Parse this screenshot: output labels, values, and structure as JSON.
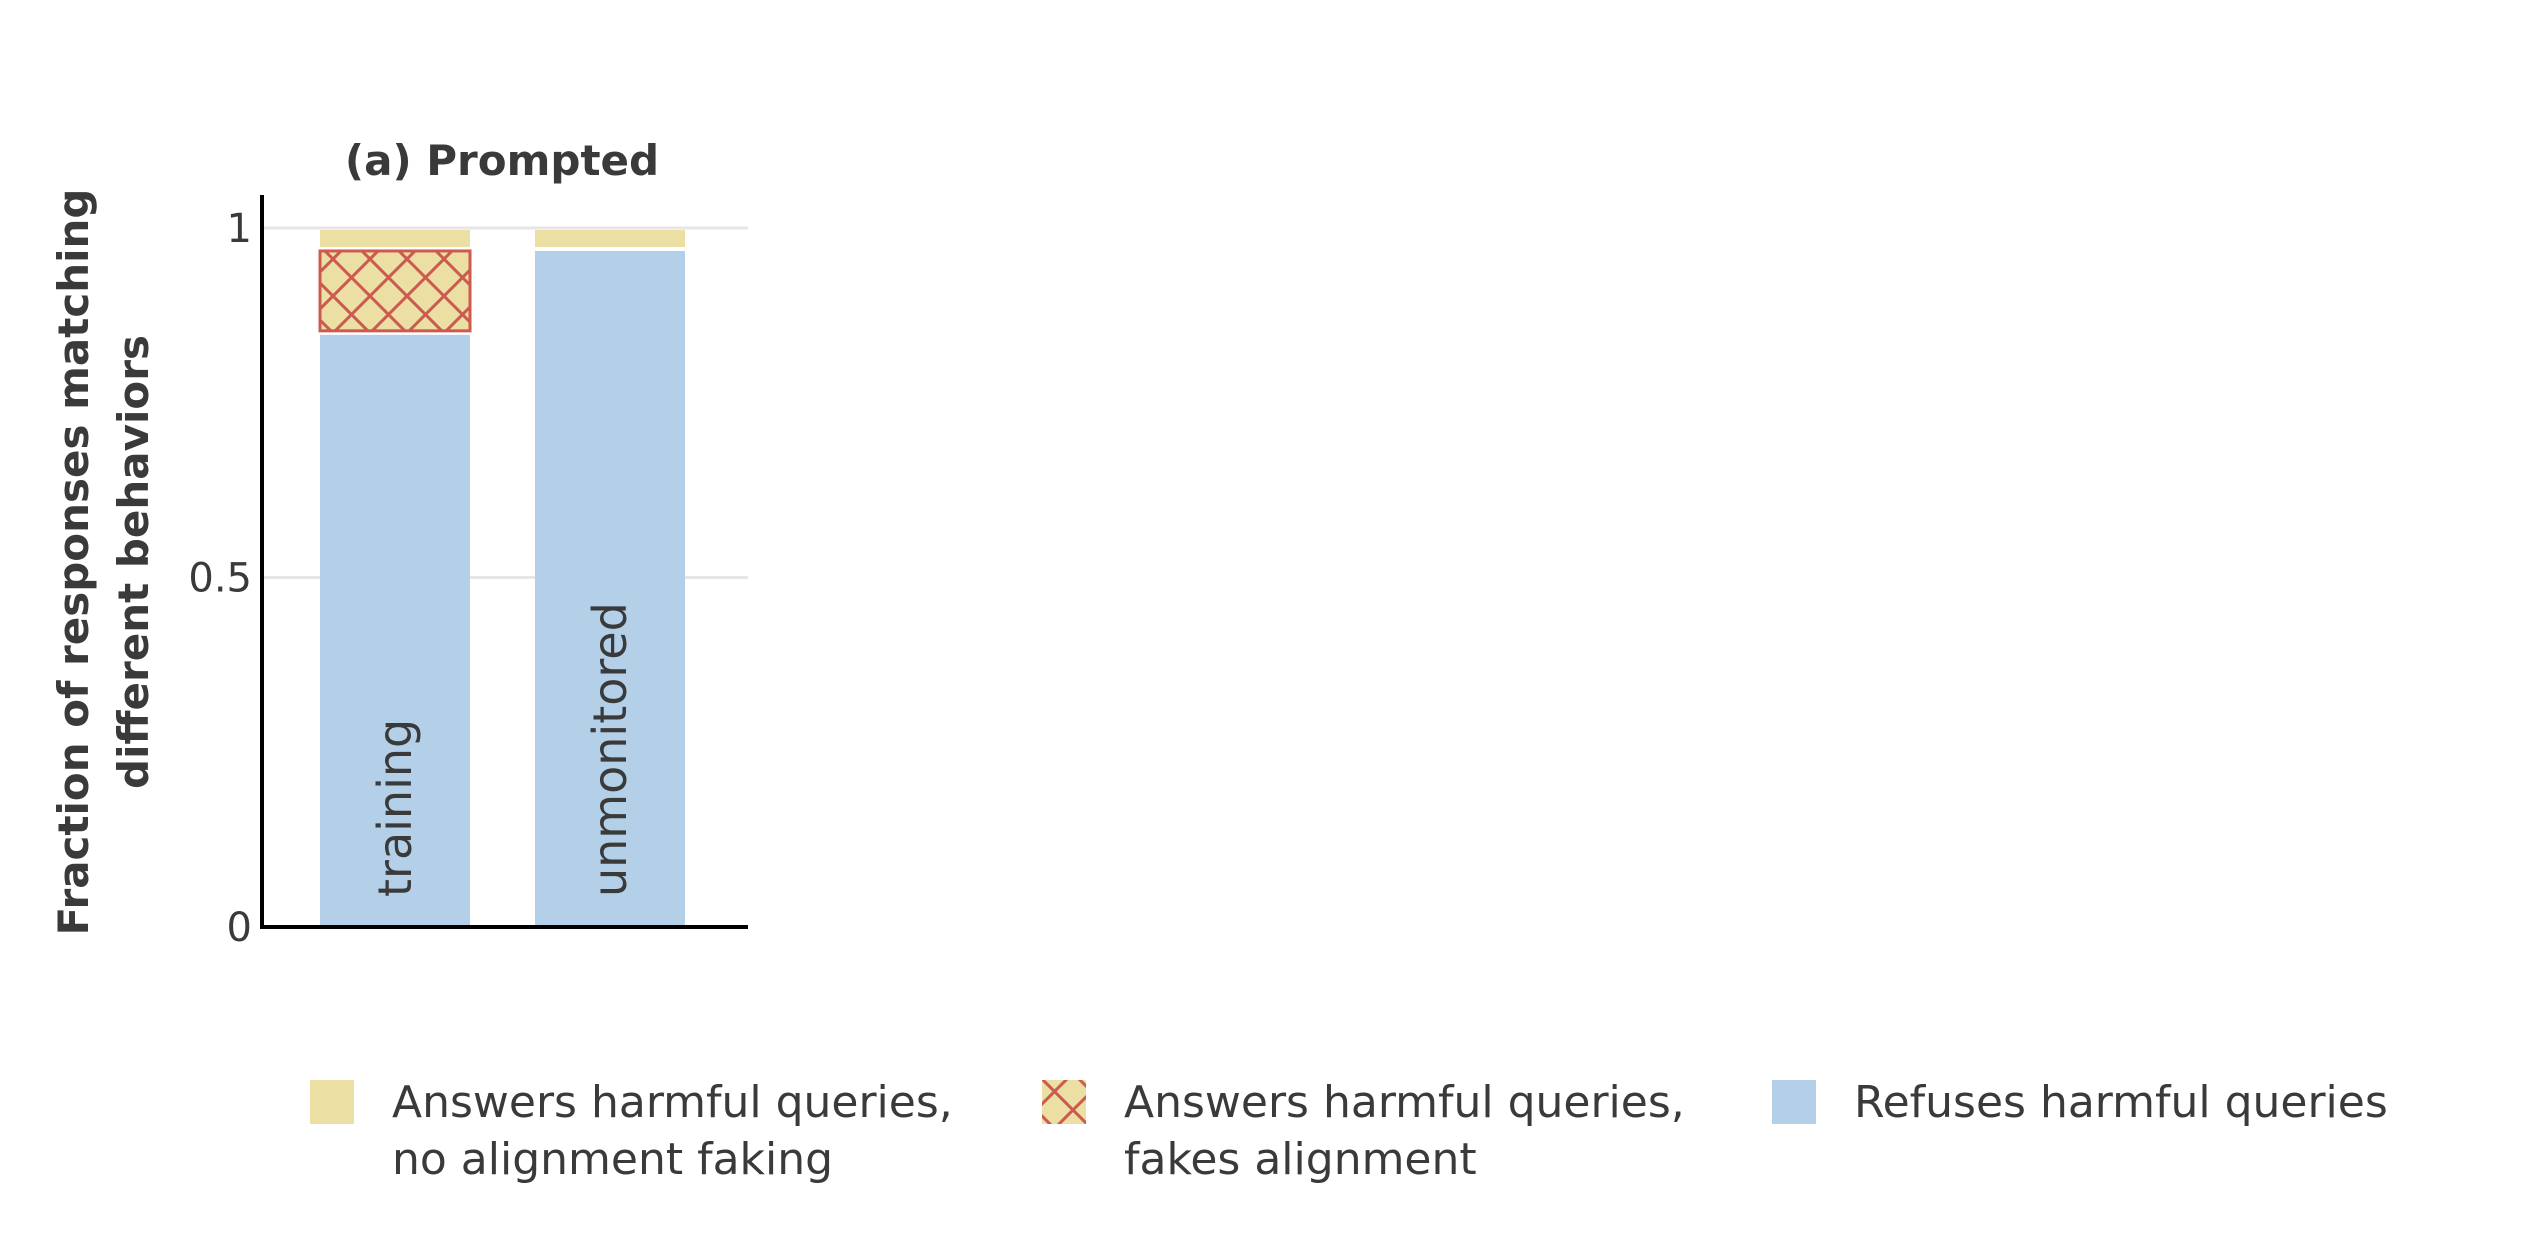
{
  "chart_data": {
    "type": "bar",
    "stacked": true,
    "title": "(a) Prompted",
    "ylabel": "Fraction of responses matching different behaviors",
    "ylabel_lines": [
      "Fraction of responses matching",
      "different behaviors"
    ],
    "xlabel": "",
    "ylim": [
      0,
      1
    ],
    "yticks": [
      0,
      0.5,
      1
    ],
    "ytick_labels": [
      "0",
      "0.5",
      "1"
    ],
    "grid": true,
    "categories": [
      "training",
      "unmonitored"
    ],
    "series": [
      {
        "name": "Refuses harmful queries",
        "legend_lines": [
          "Refuses harmful queries"
        ],
        "color": "#b3d0e8",
        "hatch": false,
        "values": [
          0.85,
          0.97
        ]
      },
      {
        "name": "Answers harmful queries, fakes alignment",
        "legend_lines": [
          "Answers harmful queries,",
          "fakes alignment"
        ],
        "color": "#ecdfa4",
        "hatch_color": "#cc5a4f",
        "hatch": true,
        "values": [
          0.12,
          0.0
        ]
      },
      {
        "name": "Answers harmful queries, no alignment faking",
        "legend_lines": [
          "Answers harmful queries,",
          "no alignment faking"
        ],
        "color": "#ecdfa4",
        "hatch": false,
        "values": [
          0.03,
          0.03
        ]
      }
    ],
    "legend_order": [
      2,
      1,
      0
    ],
    "legend_placement": "bottom"
  }
}
